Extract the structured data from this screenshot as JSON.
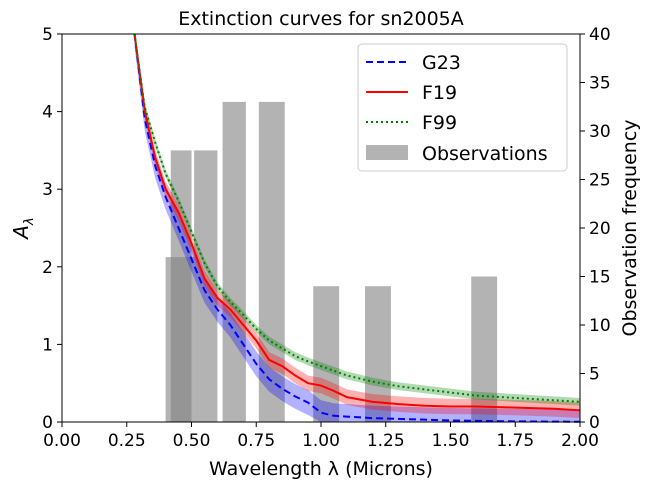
{
  "chart_data": {
    "type": "line",
    "title": "Extinction curves for sn2005A",
    "xlabel": "Wavelength λ (Microns)",
    "ylabel_main": "A",
    "ylabel_sub": "λ",
    "y2label": "Observation frequency",
    "xlim": [
      0,
      2
    ],
    "ylim": [
      0,
      5
    ],
    "y2lim": [
      0,
      40
    ],
    "xticks": [
      "0.00",
      "0.25",
      "0.50",
      "0.75",
      "1.00",
      "1.25",
      "1.50",
      "1.75",
      "2.00"
    ],
    "xtick_values": [
      0,
      0.25,
      0.5,
      0.75,
      1.0,
      1.25,
      1.5,
      1.75,
      2.0
    ],
    "yticks": [
      "0",
      "1",
      "2",
      "3",
      "4",
      "5"
    ],
    "ytick_values": [
      0,
      1,
      2,
      3,
      4,
      5
    ],
    "y2ticks": [
      "0",
      "5",
      "10",
      "15",
      "20",
      "25",
      "30",
      "35",
      "40"
    ],
    "y2tick_values": [
      0,
      5,
      10,
      15,
      20,
      25,
      30,
      35,
      40
    ],
    "grid": false,
    "legend_position": "top-right",
    "series": [
      {
        "name": "G23",
        "color": "#0000ff",
        "style": "dashed",
        "band_halfwidth": [
          0.12,
          0.12,
          0.14,
          0.15,
          0.15,
          0.14,
          0.13,
          0.12,
          0.1,
          0.08,
          0.06,
          0.04,
          0.02,
          0.0
        ],
        "x": [
          0.28,
          0.32,
          0.36,
          0.4,
          0.45,
          0.5,
          0.55,
          0.6,
          0.65,
          0.7,
          0.75,
          0.8,
          0.85,
          0.9,
          0.95,
          1.0,
          1.05,
          1.1,
          1.2,
          1.3,
          1.4,
          1.5,
          1.6,
          1.7,
          1.8,
          1.9,
          2.0
        ],
        "values": [
          5.0,
          3.9,
          3.3,
          2.9,
          2.5,
          2.1,
          1.7,
          1.45,
          1.25,
          1.0,
          0.75,
          0.55,
          0.43,
          0.33,
          0.25,
          0.12,
          0.08,
          0.07,
          0.05,
          0.04,
          0.03,
          0.02,
          0.015,
          0.01,
          0.007,
          0.005,
          0.003
        ]
      },
      {
        "name": "F19",
        "color": "#ff0000",
        "style": "solid",
        "x": [
          0.28,
          0.32,
          0.36,
          0.4,
          0.45,
          0.5,
          0.55,
          0.6,
          0.65,
          0.7,
          0.75,
          0.8,
          0.85,
          0.9,
          0.95,
          1.0,
          1.05,
          1.1,
          1.2,
          1.3,
          1.4,
          1.5,
          1.6,
          1.7,
          1.8,
          1.9,
          2.0
        ],
        "values": [
          5.0,
          4.0,
          3.4,
          3.0,
          2.7,
          2.3,
          1.85,
          1.6,
          1.45,
          1.25,
          1.05,
          0.8,
          0.72,
          0.6,
          0.5,
          0.47,
          0.4,
          0.32,
          0.26,
          0.23,
          0.21,
          0.2,
          0.2,
          0.19,
          0.18,
          0.17,
          0.15
        ]
      },
      {
        "name": "F99",
        "color": "#008000",
        "style": "dotted",
        "x": [
          0.28,
          0.32,
          0.36,
          0.4,
          0.45,
          0.5,
          0.55,
          0.6,
          0.65,
          0.7,
          0.75,
          0.8,
          0.85,
          0.9,
          0.95,
          1.0,
          1.05,
          1.1,
          1.2,
          1.3,
          1.4,
          1.5,
          1.6,
          1.7,
          1.8,
          1.9,
          2.0
        ],
        "values": [
          5.0,
          4.05,
          3.6,
          3.2,
          2.85,
          2.45,
          2.05,
          1.75,
          1.55,
          1.38,
          1.2,
          1.05,
          0.95,
          0.85,
          0.78,
          0.72,
          0.66,
          0.6,
          0.52,
          0.46,
          0.42,
          0.38,
          0.34,
          0.32,
          0.3,
          0.28,
          0.26
        ]
      }
    ],
    "observations": {
      "name": "Observations",
      "color": "#808080",
      "bars": [
        {
          "x_start": 0.4,
          "x_end": 0.51,
          "count": 17
        },
        {
          "x_start": 0.42,
          "x_end": 0.5,
          "count": 28
        },
        {
          "x_start": 0.51,
          "x_end": 0.6,
          "count": 28
        },
        {
          "x_start": 0.62,
          "x_end": 0.71,
          "count": 33
        },
        {
          "x_start": 0.76,
          "x_end": 0.86,
          "count": 33
        },
        {
          "x_start": 0.97,
          "x_end": 1.07,
          "count": 14
        },
        {
          "x_start": 1.17,
          "x_end": 1.27,
          "count": 14
        },
        {
          "x_start": 1.58,
          "x_end": 1.68,
          "count": 15
        }
      ]
    }
  }
}
